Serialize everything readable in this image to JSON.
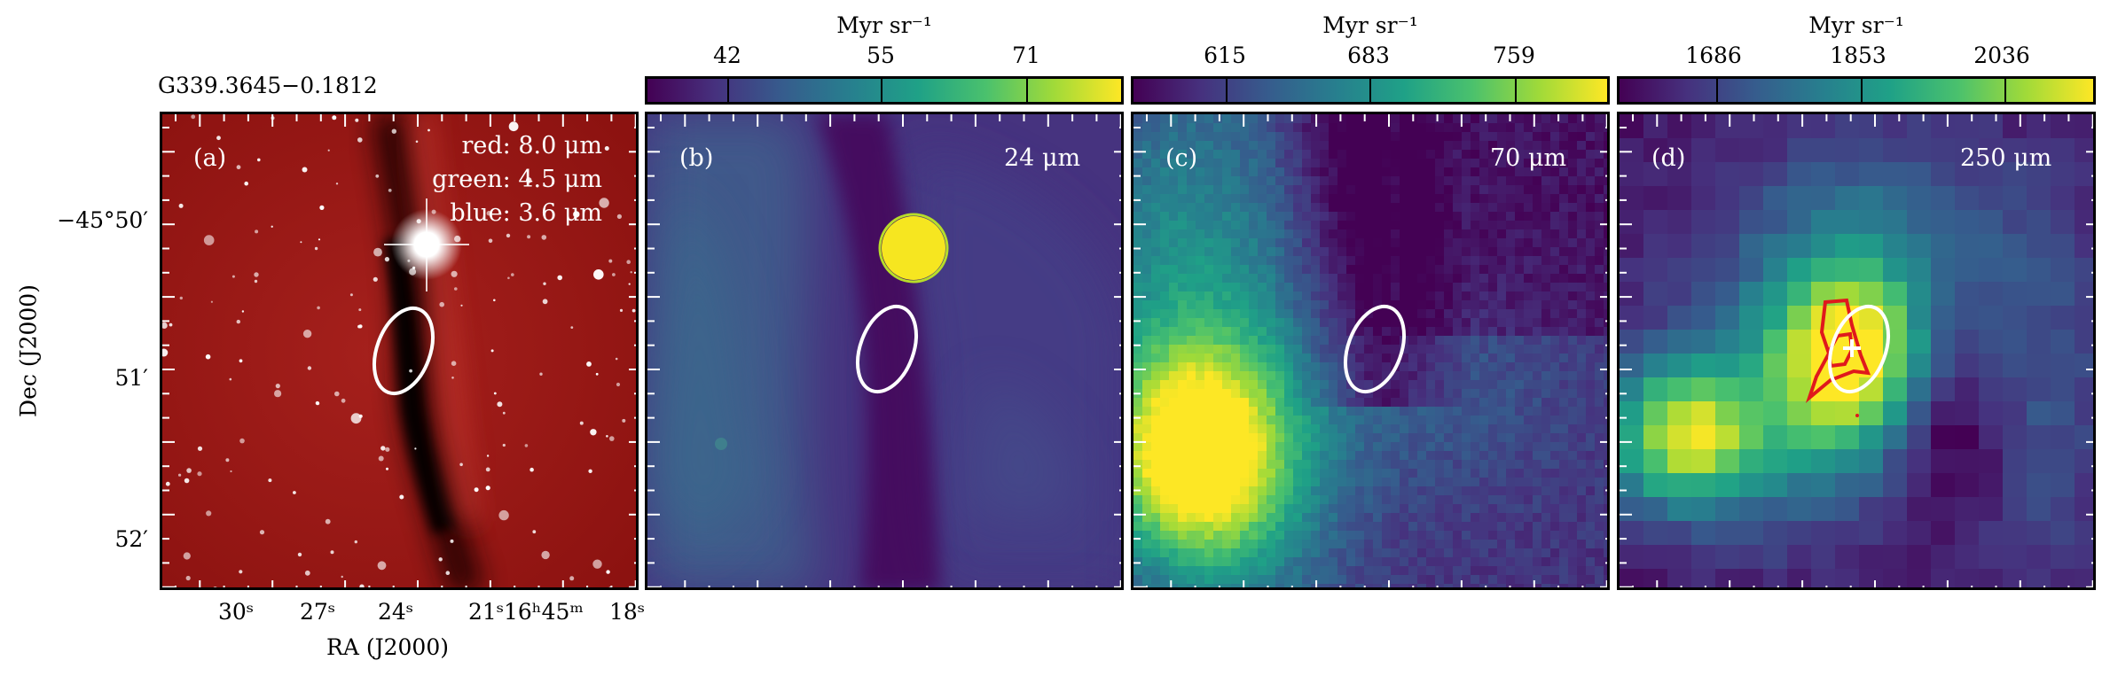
{
  "source_name": "G339.3645−0.1812",
  "y_axis": {
    "label": "Dec (J2000)",
    "ticks": [
      "−45°50′",
      "51′",
      "52′"
    ]
  },
  "x_axis": {
    "label": "RA (J2000)",
    "ticks": [
      "30ˢ",
      "27ˢ",
      "24ˢ",
      "21ˢ",
      "16ʰ45ᵐ",
      "18ˢ"
    ]
  },
  "panels": [
    {
      "id": "a",
      "tag": "(a)",
      "legend": [
        "red: 8.0 μm",
        "green: 4.5 μm",
        "blue: 3.6 μm"
      ]
    },
    {
      "id": "b",
      "tag": "(b)",
      "band": "24 μm",
      "colorbar": {
        "unit": "Myr sr⁻¹",
        "ticks": [
          "42",
          "55",
          "71"
        ]
      }
    },
    {
      "id": "c",
      "tag": "(c)",
      "band": "70 μm",
      "colorbar": {
        "unit": "Myr sr⁻¹",
        "ticks": [
          "615",
          "683",
          "759"
        ]
      }
    },
    {
      "id": "d",
      "tag": "(d)",
      "band": "250 μm",
      "colorbar": {
        "unit": "Myr sr⁻¹",
        "ticks": [
          "1686",
          "1853",
          "2036"
        ]
      }
    }
  ],
  "colors": {
    "ir_red": "#9a1412",
    "viridis_low": "#440154",
    "viridis_high": "#fde725",
    "contour": "#e0191c",
    "ellipse": "#ffffff"
  }
}
